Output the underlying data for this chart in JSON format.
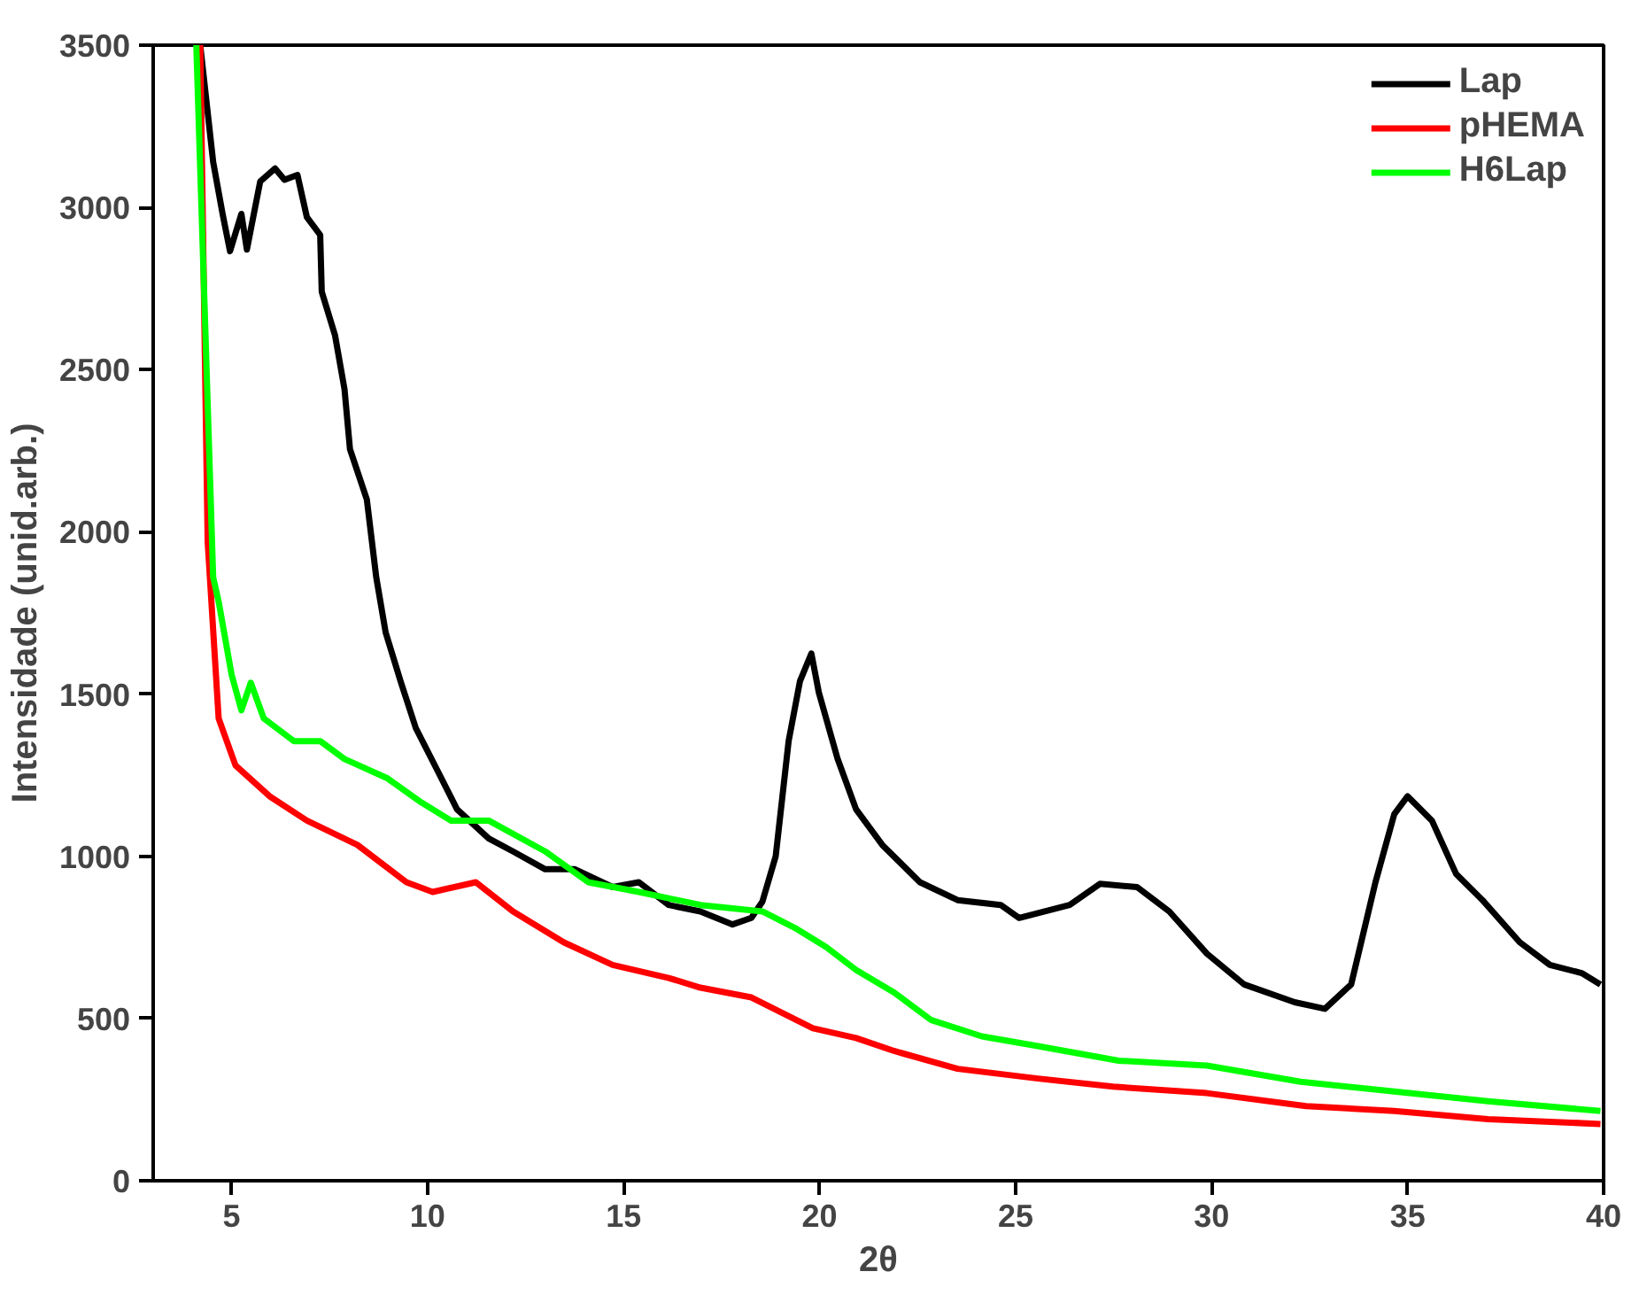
{
  "chart_data": {
    "type": "line",
    "xlabel": "2θ",
    "ylabel": "Intensidade (unid.arb.)",
    "xlim": [
      3,
      40
    ],
    "ylim": [
      0,
      3500
    ],
    "xticks": [
      5,
      10,
      15,
      20,
      25,
      30,
      35,
      40
    ],
    "yticks": [
      0,
      500,
      1000,
      1500,
      2000,
      2500,
      3000,
      3500
    ],
    "grid": false,
    "legend": "top right",
    "marker": "none",
    "line_style": "solid",
    "series": [
      {
        "name": "Lap",
        "color": "#000000",
        "x": [
          4.2,
          4.53,
          4.77,
          4.96,
          5.25,
          5.39,
          5.73,
          6.11,
          6.35,
          6.68,
          6.92,
          7.26,
          7.3,
          7.64,
          7.88,
          8.02,
          8.45,
          8.69,
          8.93,
          9.31,
          9.7,
          10.27,
          10.75,
          11.56,
          12.18,
          13.0,
          13.76,
          14.72,
          15.39,
          16.15,
          16.96,
          17.78,
          18.26,
          18.54,
          18.88,
          19.21,
          19.5,
          19.79,
          19.98,
          20.46,
          20.93,
          21.6,
          22.56,
          23.52,
          24.62,
          25.09,
          26.38,
          27.15,
          28.1,
          28.92,
          29.88,
          30.83,
          32.12,
          32.89,
          33.56,
          34.18,
          34.66,
          35.0,
          35.62,
          36.24,
          36.91,
          37.86,
          38.63,
          39.44,
          39.92
        ],
        "values": [
          3500,
          3140,
          2980,
          2865,
          2980,
          2870,
          3080,
          3120,
          3085,
          3100,
          2970,
          2915,
          2740,
          2605,
          2440,
          2255,
          2100,
          1860,
          1690,
          1540,
          1395,
          1260,
          1145,
          1055,
          1015,
          960,
          960,
          905,
          920,
          850,
          830,
          790,
          810,
          860,
          1000,
          1355,
          1540,
          1625,
          1505,
          1300,
          1145,
          1035,
          920,
          865,
          850,
          810,
          850,
          915,
          905,
          830,
          700,
          605,
          550,
          530,
          605,
          920,
          1130,
          1185,
          1110,
          945,
          865,
          735,
          665,
          640,
          605
        ]
      },
      {
        "name": "pHEMA",
        "color": "#ff0000",
        "x": [
          4.2,
          4.39,
          4.67,
          5.1,
          5.97,
          6.92,
          8.21,
          9.46,
          10.13,
          11.23,
          12.18,
          13.47,
          14.72,
          16.15,
          16.96,
          18.26,
          19.83,
          20.93,
          21.9,
          23.52,
          25.57,
          27.49,
          29.88,
          32.41,
          34.66,
          37.05,
          39.92
        ],
        "values": [
          3500,
          1970,
          1425,
          1280,
          1185,
          1110,
          1035,
          920,
          890,
          920,
          830,
          735,
          665,
          625,
          595,
          565,
          470,
          440,
          400,
          345,
          315,
          290,
          270,
          230,
          215,
          190,
          175
        ]
      },
      {
        "name": "H6Lap",
        "color": "#00ff00",
        "x": [
          4.1,
          4.53,
          4.67,
          5.0,
          5.25,
          5.49,
          5.82,
          6.59,
          7.26,
          7.88,
          8.98,
          9.79,
          10.6,
          11.56,
          13.0,
          14.1,
          15.39,
          16.96,
          18.54,
          19.36,
          20.17,
          20.93,
          21.9,
          22.85,
          24.14,
          25.57,
          27.63,
          29.88,
          32.27,
          34.66,
          37.05,
          39.92
        ],
        "values": [
          3500,
          1860,
          1785,
          1560,
          1450,
          1535,
          1425,
          1355,
          1355,
          1300,
          1240,
          1170,
          1110,
          1110,
          1015,
          920,
          890,
          850,
          830,
          780,
          720,
          650,
          580,
          495,
          445,
          415,
          370,
          355,
          305,
          275,
          245,
          215
        ]
      }
    ]
  }
}
